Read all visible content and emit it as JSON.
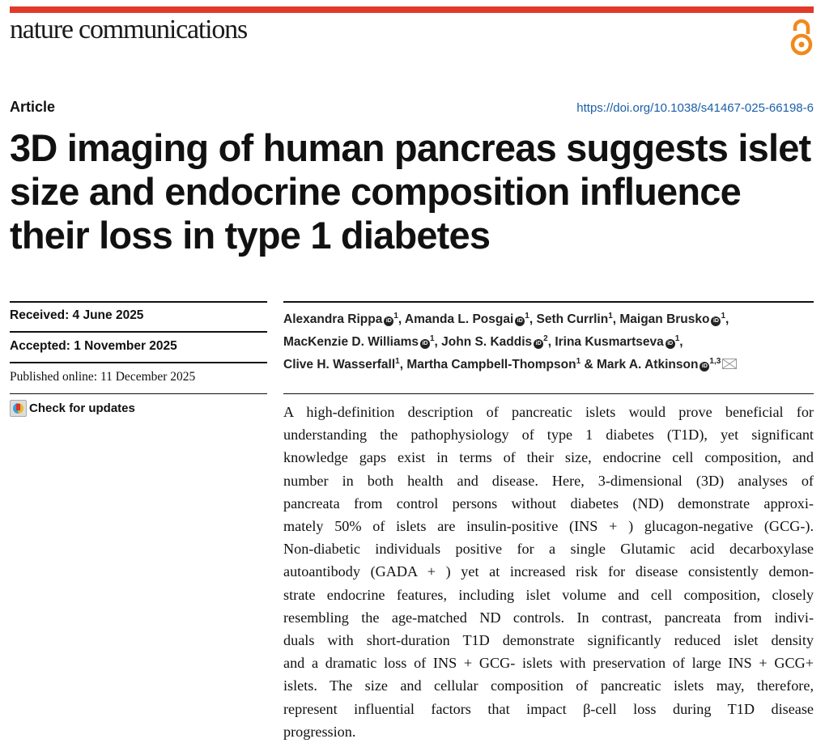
{
  "journal": "nature communications",
  "brand_color": "#e03a2a",
  "open_access_icon_color": "#f08a1c",
  "article_type": "Article",
  "doi": "https://doi.org/10.1038/s41467-025-66198-6",
  "title_lines": [
    "3D imaging of human pancreas suggests islet",
    "size and endocrine composition influence",
    "their loss in type 1 diabetes"
  ],
  "received": "Received: 4 June 2025",
  "accepted": "Accepted: 1 November 2025",
  "published": "Published online: 11 December 2025",
  "check_updates": "Check for updates",
  "authors": [
    {
      "name": "Alexandra Rippa",
      "orcid": true,
      "aff": "1"
    },
    {
      "name": "Amanda L. Posgai",
      "orcid": true,
      "aff": "1"
    },
    {
      "name": "Seth Currlin",
      "orcid": false,
      "aff": "1"
    },
    {
      "name": "Maigan Brusko",
      "orcid": true,
      "aff": "1"
    },
    {
      "name": "MacKenzie D. Williams",
      "orcid": true,
      "aff": "1"
    },
    {
      "name": "John S. Kaddis",
      "orcid": true,
      "aff": "2"
    },
    {
      "name": "Irina Kusmartseva",
      "orcid": true,
      "aff": "1"
    },
    {
      "name": "Clive H. Wasserfall",
      "orcid": false,
      "aff": "1"
    },
    {
      "name": "Martha Campbell-Thompson",
      "orcid": false,
      "aff": "1"
    },
    {
      "name": "Mark A. Atkinson",
      "orcid": true,
      "aff": "1,3"
    }
  ],
  "abstract_lines": [
    "A high-definition description of pancreatic islets would prove beneficial for",
    "understanding the pathophysiology of type 1 diabetes (T1D), yet significant",
    "knowledge gaps exist in terms of their size, endocrine cell composition, and",
    "number in both health and disease. Here, 3-dimensional (3D) analyses of",
    "pancreata from control persons without diabetes (ND) demonstrate approxi-",
    "mately 50% of islets are insulin-positive (INS + ) glucagon-negative (GCG-).",
    "Non-diabetic individuals positive for a single Glutamic acid decarboxylase",
    "autoantibody (GADA + ) yet at increased risk for disease consistently demon-",
    "strate endocrine features, including islet volume and cell composition, closely",
    "resembling the age-matched ND controls. In contrast, pancreata from indivi-",
    "duals with short-duration T1D demonstrate significantly reduced islet density",
    "and a dramatic loss of INS + GCG- islets with preservation of large INS + GCG+",
    "islets. The size and cellular composition of pancreatic islets may, therefore,",
    "represent influential factors that impact β-cell loss during T1D disease",
    "progression."
  ]
}
